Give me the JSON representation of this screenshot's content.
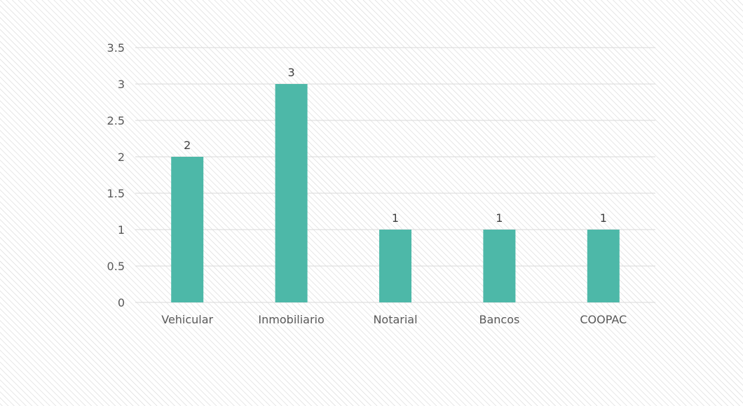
{
  "chart_data": {
    "type": "bar",
    "title": "",
    "xlabel": "",
    "ylabel": "",
    "categories": [
      "Vehicular",
      "Inmobiliario",
      "Notarial",
      "Bancos",
      "COOPAC"
    ],
    "values": [
      2,
      3,
      1,
      1,
      1
    ],
    "data_labels": [
      "2",
      "3",
      "1",
      "1",
      "1"
    ],
    "ylim": [
      0,
      3.5
    ],
    "y_ticks": [
      0,
      0.5,
      1,
      1.5,
      2,
      2.5,
      3,
      3.5
    ],
    "y_tick_labels": [
      "0",
      "0.5",
      "1",
      "1.5",
      "2",
      "2.5",
      "3",
      "3.5"
    ],
    "grid": true,
    "legend": "none",
    "colors": {
      "bar": "#4db8a8",
      "background": "#ffffff",
      "hatch": "#d6d6d6"
    }
  }
}
